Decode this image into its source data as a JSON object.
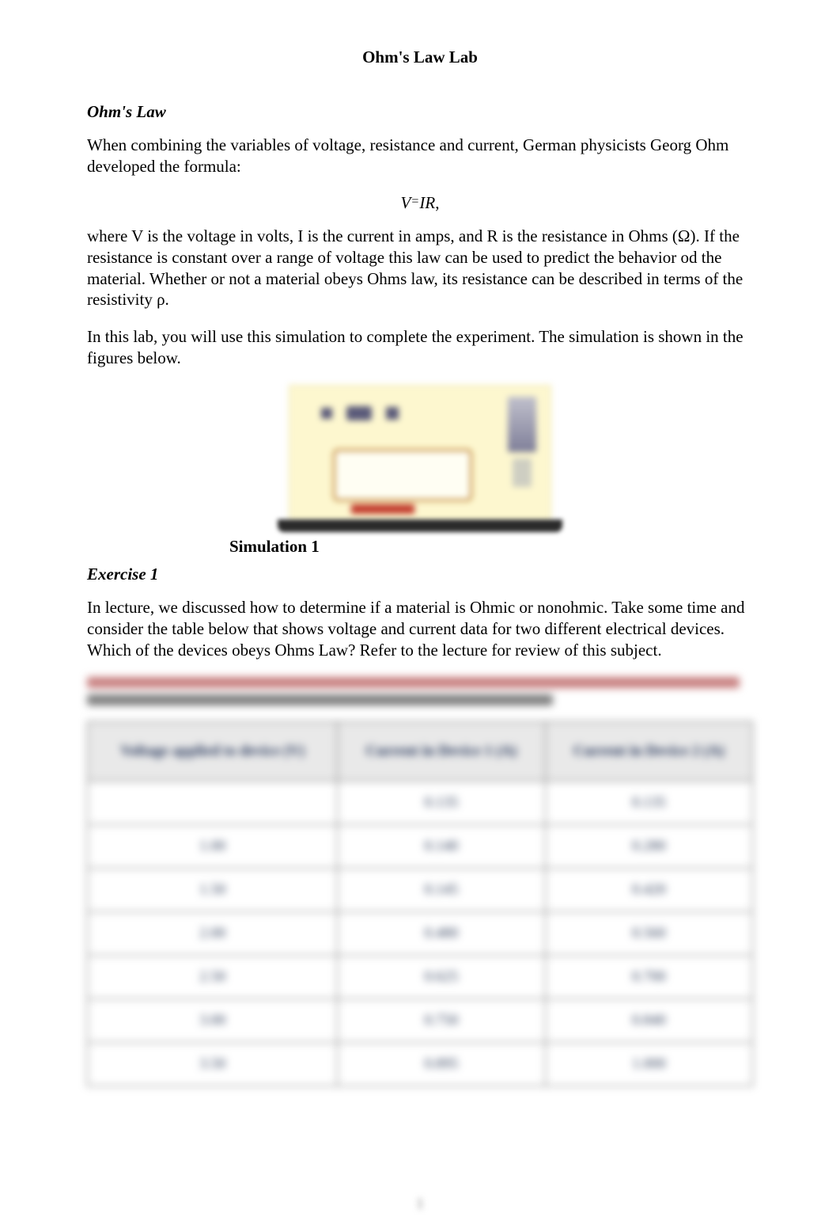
{
  "title": "Ohm's Law Lab",
  "section1": {
    "heading": "Ohm's Law",
    "p1": "When combining the variables of voltage, resistance and current, German physicists Georg Ohm developed the formula:",
    "formula_V": "V",
    "formula_eq": "=",
    "formula_IR": "IR",
    "formula_comma": ",",
    "p2": "where V is the voltage in volts, I is the current in amps, and R is the resistance in Ohms (Ω). If the resistance is constant over a range of voltage this law can be used to predict the behavior od the material. Whether or not a material obeys Ohms law, its resistance can be described in terms of the resistivity ρ.",
    "p3": "In this lab, you will use this simulation to complete the experiment. The simulation is shown in the figures below."
  },
  "simulation": {
    "caption": "Simulation 1",
    "card_bg": "#fdf7cf",
    "underbar_color": "#2b2b2b"
  },
  "exercise1": {
    "heading": "Exercise 1",
    "p1": "In lecture, we discussed how to determine if a material is Ohmic or nonohmic. Take some time and consider the table below that shows voltage and current data for two different electrical devices. Which of the devices obeys Ohms Law? Refer to the lecture for review of this subject."
  },
  "table": {
    "type": "table",
    "columns": [
      "Voltage applied to device (V)",
      "Current in Device 1 (A)",
      "Current in Device 2 (A)"
    ],
    "rows": [
      [
        " ",
        "0.135",
        "0.135"
      ],
      [
        "1.00",
        "0.140",
        "0.280"
      ],
      [
        "1.50",
        "0.145",
        "0.420"
      ],
      [
        "2.00",
        "0.480",
        "0.560"
      ],
      [
        "2.50",
        "0.625",
        "0.700"
      ],
      [
        "3.00",
        "0.750",
        "0.840"
      ],
      [
        "3.50",
        "0.895",
        "1.000"
      ]
    ],
    "header_bg": "#e9e9e9",
    "border_color": "#4d4d4d",
    "cell_text_color": "#2c3a57",
    "header_text_color": "#1e2f55"
  },
  "page_number": "1"
}
